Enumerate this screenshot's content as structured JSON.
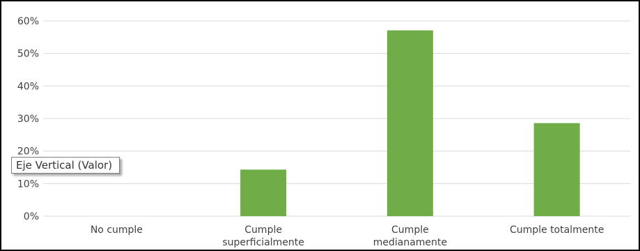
{
  "chart_data": {
    "type": "bar",
    "categories": [
      [
        "No cumple"
      ],
      [
        "Cumple",
        "superficialmente"
      ],
      [
        "Cumple",
        "medianamente"
      ],
      [
        "Cumple totalmente"
      ]
    ],
    "values": [
      0,
      14.3,
      57.1,
      28.6
    ],
    "ylim": [
      0,
      60
    ],
    "yticks": [
      "0%",
      "10%",
      "20%",
      "30%",
      "40%",
      "50%",
      "60%"
    ],
    "grid": true,
    "bar_color": "#70ad47",
    "gridline_color": "#d9d9d9"
  },
  "tooltip": {
    "text": "Eje Vertical (Valor)"
  }
}
